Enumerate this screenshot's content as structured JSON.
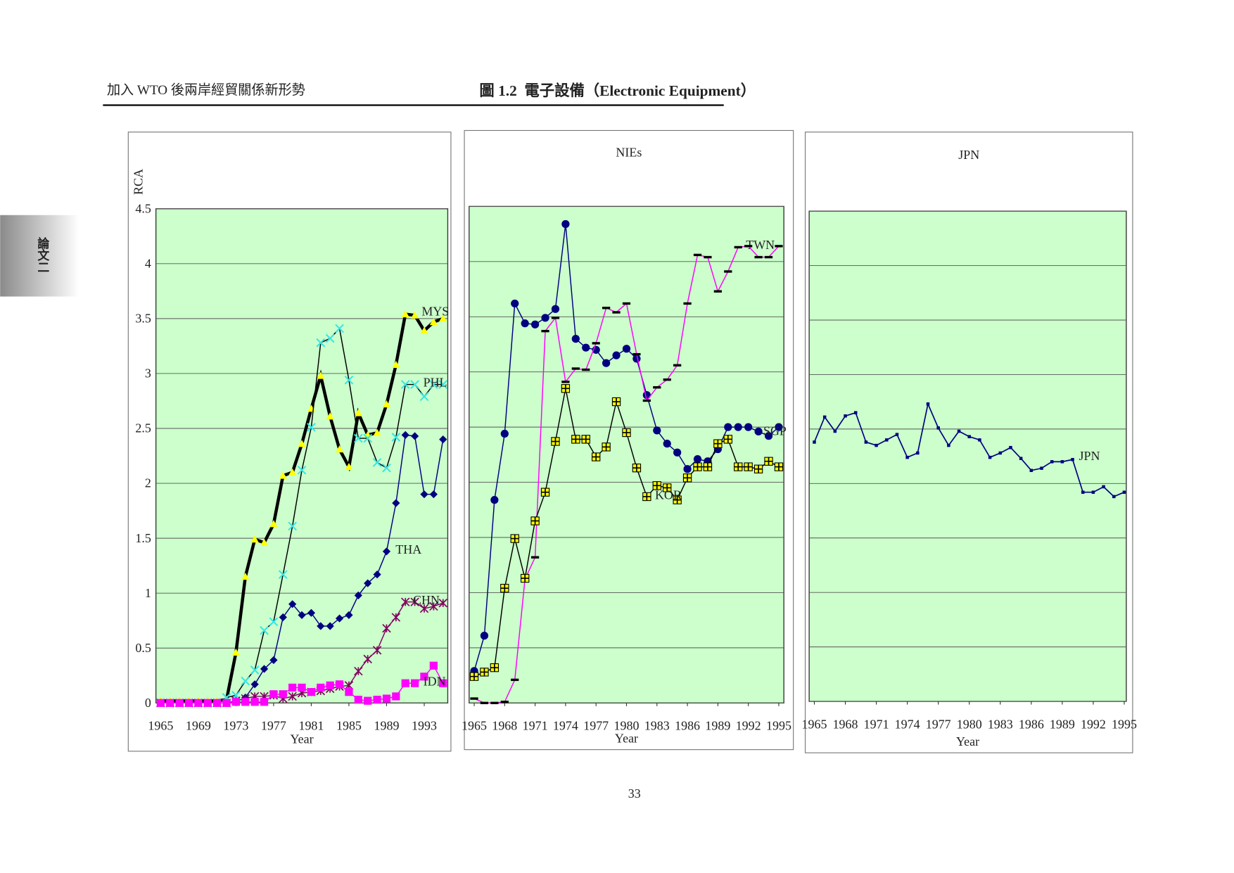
{
  "header": {
    "book_title": "加入 WTO 後兩岸經貿關係新形勢",
    "figure_title": "圖 1.2  電子設備（Electronic Equipment）",
    "side_tab": "論文二"
  },
  "page_number": "33",
  "chart_data": [
    {
      "type": "line",
      "ylabel": "RCA",
      "xlabel": "Year",
      "plot_bg": "#ccffcc",
      "grid": true,
      "ytick_labels": true,
      "x": [
        1965,
        1966,
        1967,
        1968,
        1969,
        1970,
        1971,
        1972,
        1973,
        1974,
        1975,
        1976,
        1977,
        1978,
        1979,
        1980,
        1981,
        1982,
        1983,
        1984,
        1985,
        1986,
        1987,
        1988,
        1989,
        1990,
        1991,
        1992,
        1993,
        1994,
        1995
      ],
      "xlim": [
        1964.5,
        1995.5
      ],
      "xticks": [
        1965,
        1969,
        1973,
        1977,
        1981,
        1985,
        1989,
        1993
      ],
      "ylim": [
        0,
        4.5
      ],
      "yticks": [
        0,
        0.5,
        1,
        1.5,
        2,
        2.5,
        3,
        3.5,
        4,
        4.5
      ],
      "series": [
        {
          "name": "MYS",
          "color": "#ffff00",
          "line_color": "#000000",
          "line_width": 4,
          "marker": "triangle",
          "values": [
            0.02,
            0.02,
            0.02,
            0.02,
            0.02,
            0.02,
            0.02,
            0.03,
            0.46,
            1.15,
            1.49,
            1.46,
            1.63,
            2.07,
            2.1,
            2.36,
            2.68,
            2.98,
            2.61,
            2.31,
            2.15,
            2.64,
            2.44,
            2.46,
            2.72,
            3.08,
            3.54,
            3.53,
            3.39,
            3.47,
            3.5
          ]
        },
        {
          "name": "PHL",
          "color": "#33e6e6",
          "line_color": "#000000",
          "line_width": 1.3,
          "marker": "x",
          "values": [
            0,
            0,
            0,
            0,
            0,
            0,
            0,
            0.05,
            0.07,
            0.2,
            0.3,
            0.66,
            0.74,
            1.17,
            1.61,
            2.12,
            2.51,
            3.28,
            3.32,
            3.41,
            2.94,
            2.41,
            2.41,
            2.19,
            2.14,
            2.42,
            2.9,
            2.9,
            2.79,
            2.9,
            2.9
          ]
        },
        {
          "name": "THA",
          "color": "#000080",
          "line_color": "#000080",
          "line_width": 1.3,
          "marker": "diamond",
          "values": [
            0,
            0,
            0,
            0,
            0,
            0,
            0,
            0,
            0.01,
            0.05,
            0.17,
            0.31,
            0.39,
            0.78,
            0.9,
            0.8,
            0.82,
            0.7,
            0.7,
            0.77,
            0.8,
            0.98,
            1.09,
            1.17,
            1.38,
            1.82,
            2.44,
            2.43,
            1.9,
            1.9,
            2.4
          ]
        },
        {
          "name": "CHN",
          "color": "#800060",
          "line_color": "#800060",
          "line_width": 1.3,
          "marker": "asterisk",
          "values": [
            0,
            0,
            0,
            0,
            0,
            0,
            0,
            0,
            0.02,
            0.04,
            0.06,
            0.06,
            0.07,
            0.04,
            0.06,
            0.09,
            0.1,
            0.11,
            0.13,
            0.15,
            0.16,
            0.29,
            0.4,
            0.48,
            0.68,
            0.78,
            0.92,
            0.92,
            0.86,
            0.88,
            0.91
          ]
        },
        {
          "name": "IDN",
          "color": "#ff00ff",
          "line_color": "#ff00ff",
          "line_width": 1.3,
          "marker": "square",
          "values": [
            0,
            0,
            0,
            0,
            0,
            0,
            0,
            0,
            0.01,
            0.01,
            0.01,
            0.01,
            0.08,
            0.08,
            0.14,
            0.14,
            0.1,
            0.14,
            0.16,
            0.17,
            0.1,
            0.03,
            0.02,
            0.03,
            0.04,
            0.06,
            0.18,
            0.18,
            0.24,
            0.34,
            0.18
          ]
        }
      ]
    },
    {
      "type": "line",
      "title": "NIEs",
      "xlabel": "Year",
      "plot_bg": "#ccffcc",
      "grid": true,
      "ytick_labels": false,
      "x": [
        1965,
        1966,
        1967,
        1968,
        1969,
        1970,
        1971,
        1972,
        1973,
        1974,
        1975,
        1976,
        1977,
        1978,
        1979,
        1980,
        1981,
        1982,
        1983,
        1984,
        1985,
        1986,
        1987,
        1988,
        1989,
        1990,
        1991,
        1992,
        1993,
        1994,
        1995
      ],
      "xlim": [
        1964.5,
        1995.5
      ],
      "xticks": [
        1965,
        1968,
        1971,
        1974,
        1977,
        1980,
        1983,
        1986,
        1989,
        1992,
        1995
      ],
      "ylim": [
        0,
        4.5
      ],
      "yticks": [
        0,
        0.5,
        1,
        1.5,
        2,
        2.5,
        3,
        3.5,
        4,
        4.5
      ],
      "series": [
        {
          "name": "TWN",
          "color": "#000080",
          "line_color": "#000080",
          "line_width": 1.3,
          "marker": "circle",
          "values": [
            0.29,
            0.61,
            1.84,
            2.44,
            3.62,
            3.44,
            3.43,
            3.49,
            3.57,
            4.34,
            3.3,
            3.22,
            3.2,
            3.08,
            3.15,
            3.21,
            3.12,
            2.79,
            2.47,
            2.35,
            2.27,
            2.12,
            2.21,
            2.19,
            2.3,
            2.5,
            2.5,
            2.5,
            2.46,
            2.42,
            2.5
          ]
        },
        {
          "name": "SGP",
          "color": "#000000",
          "line_color": "#ff00ff",
          "line_width": 1.3,
          "marker": "dash",
          "values": [
            0.04,
            0,
            0,
            0.01,
            0.21,
            1.12,
            1.32,
            3.37,
            3.49,
            2.91,
            3.03,
            3.02,
            3.26,
            3.58,
            3.54,
            3.62,
            3.16,
            2.74,
            2.86,
            2.93,
            3.06,
            3.62,
            4.06,
            4.04,
            3.73,
            3.91,
            4.13,
            4.14,
            4.04,
            4.04,
            4.14
          ]
        },
        {
          "name": "KOR",
          "color": "#ffff00",
          "line_color": "#000000",
          "line_width": 1.3,
          "marker": "plus-square",
          "values": [
            0.24,
            0.28,
            0.32,
            1.04,
            1.49,
            1.13,
            1.65,
            1.91,
            2.37,
            2.85,
            2.39,
            2.39,
            2.23,
            2.32,
            2.73,
            2.45,
            2.13,
            1.87,
            1.97,
            1.95,
            1.84,
            2.04,
            2.14,
            2.14,
            2.35,
            2.39,
            2.14,
            2.14,
            2.12,
            2.19,
            2.14
          ]
        }
      ]
    },
    {
      "type": "line",
      "title": "JPN",
      "xlabel": "Year",
      "plot_bg": "#ccffcc",
      "grid": true,
      "ytick_labels": false,
      "x": [
        1965,
        1966,
        1967,
        1968,
        1969,
        1970,
        1971,
        1972,
        1973,
        1974,
        1975,
        1976,
        1977,
        1978,
        1979,
        1980,
        1981,
        1982,
        1983,
        1984,
        1985,
        1986,
        1987,
        1988,
        1989,
        1990,
        1991,
        1992,
        1993,
        1994,
        1995
      ],
      "xlim": [
        1964.5,
        1995.2
      ],
      "xticks": [
        1965,
        1968,
        1971,
        1974,
        1977,
        1980,
        1983,
        1986,
        1989,
        1992,
        1995
      ],
      "ylim": [
        0,
        4.5
      ],
      "yticks": [
        0,
        0.5,
        1,
        1.5,
        2,
        2.5,
        3,
        3.5,
        4,
        4.5
      ],
      "series": [
        {
          "name": "JPN",
          "color": "#000080",
          "line_color": "#000080",
          "line_width": 1.5,
          "marker": "small-square",
          "values": [
            2.38,
            2.61,
            2.48,
            2.62,
            2.65,
            2.38,
            2.35,
            2.4,
            2.45,
            2.24,
            2.28,
            2.73,
            2.51,
            2.35,
            2.48,
            2.43,
            2.4,
            2.24,
            2.28,
            2.33,
            2.23,
            2.12,
            2.14,
            2.2,
            2.2,
            2.22,
            1.92,
            1.92,
            1.97,
            1.88,
            1.92
          ]
        }
      ]
    }
  ]
}
